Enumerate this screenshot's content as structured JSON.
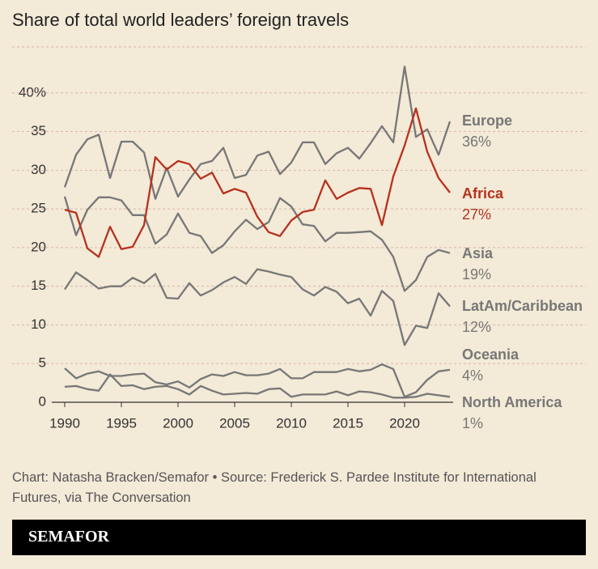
{
  "chart_data": {
    "type": "line",
    "title": "Share of total world leaders’ foreign travels",
    "x": [
      1990,
      1991,
      1992,
      1993,
      1994,
      1995,
      1996,
      1997,
      1998,
      1999,
      2000,
      2001,
      2002,
      2003,
      2004,
      2005,
      2006,
      2007,
      2008,
      2009,
      2010,
      2011,
      2012,
      2013,
      2014,
      2015,
      2016,
      2017,
      2018,
      2019,
      2020,
      2021,
      2022,
      2023,
      2024
    ],
    "xlim": [
      1990,
      2024
    ],
    "xticks": [
      1990,
      1995,
      2000,
      2005,
      2010,
      2015,
      2020
    ],
    "ylim": [
      0,
      45
    ],
    "yticks": [
      0,
      5,
      10,
      15,
      20,
      25,
      30,
      35,
      {
        "value": 40,
        "label": "40%"
      }
    ],
    "grid": true,
    "series": [
      {
        "name": "Europe",
        "color": "#777777",
        "values": [
          27.8,
          32,
          34,
          34.6,
          29,
          33.7,
          33.7,
          32.3,
          26.3,
          30.3,
          26.6,
          28.8,
          30.8,
          31.2,
          32.9,
          29,
          29.4,
          31.9,
          32.4,
          29.5,
          31,
          33.6,
          33.6,
          30.8,
          32.2,
          32.9,
          31.5,
          33.5,
          35.7,
          33.6,
          43.4,
          34.3,
          35.3,
          32,
          36.3
        ],
        "value_labels": [
          null,
          null,
          null,
          null,
          null,
          null,
          null,
          null,
          null,
          null,
          null,
          null,
          null,
          null,
          null,
          null,
          null,
          null,
          null,
          null,
          null,
          null,
          null,
          null,
          null,
          null,
          null,
          null,
          null,
          null,
          null,
          null,
          null,
          null,
          "36%"
        ]
      },
      {
        "name": "Africa",
        "color": "#b5321f",
        "values": [
          24.9,
          24.5,
          19.9,
          18.8,
          22.7,
          19.8,
          20.1,
          22.9,
          31.7,
          30.1,
          31.2,
          30.8,
          28.9,
          29.7,
          27,
          27.6,
          27.1,
          24,
          22,
          21.5,
          23.5,
          24.6,
          24.9,
          28.7,
          26.3,
          27.1,
          27.7,
          27.6,
          22.9,
          29.2,
          33.2,
          38,
          32.4,
          29,
          27.1
        ],
        "value_labels": [
          null,
          null,
          null,
          null,
          null,
          null,
          null,
          null,
          null,
          null,
          null,
          null,
          null,
          null,
          null,
          null,
          null,
          null,
          null,
          null,
          null,
          null,
          null,
          null,
          null,
          null,
          null,
          null,
          null,
          null,
          null,
          null,
          null,
          null,
          "27%"
        ]
      },
      {
        "name": "Asia",
        "color": "#777777",
        "values": [
          26.6,
          21.6,
          24.9,
          26.5,
          26.5,
          26.1,
          24.2,
          24.2,
          20.5,
          21.7,
          24.4,
          21.9,
          21.5,
          19.3,
          20.3,
          22.1,
          23.6,
          22.4,
          23.3,
          26.4,
          25.3,
          23,
          22.8,
          20.8,
          21.9,
          21.9,
          22,
          22.1,
          21,
          18.8,
          14.4,
          15.8,
          18.8,
          19.7,
          19.3
        ],
        "value_labels": [
          null,
          null,
          null,
          null,
          null,
          null,
          null,
          null,
          null,
          null,
          null,
          null,
          null,
          null,
          null,
          null,
          null,
          null,
          null,
          null,
          null,
          null,
          null,
          null,
          null,
          null,
          null,
          null,
          null,
          null,
          null,
          null,
          null,
          null,
          "19%"
        ]
      },
      {
        "name": "LatAm/Caribbean",
        "color": "#777777",
        "values": [
          14.6,
          16.8,
          15.8,
          14.7,
          15,
          15,
          16.1,
          15.4,
          16.6,
          13.5,
          13.4,
          15.4,
          13.8,
          14.5,
          15.5,
          16.2,
          15.3,
          17.2,
          16.9,
          16.5,
          16.2,
          14.6,
          13.8,
          14.9,
          14.3,
          12.8,
          13.4,
          11.2,
          14.4,
          13.1,
          7.4,
          9.9,
          9.6,
          14.1,
          12.4
        ],
        "value_labels": [
          null,
          null,
          null,
          null,
          null,
          null,
          null,
          null,
          null,
          null,
          null,
          null,
          null,
          null,
          null,
          null,
          null,
          null,
          null,
          null,
          null,
          null,
          null,
          null,
          null,
          null,
          null,
          null,
          null,
          null,
          null,
          null,
          null,
          null,
          "12%"
        ]
      },
      {
        "name": "Oceania",
        "color": "#777777",
        "values": [
          4.4,
          3.1,
          3.7,
          4,
          3.4,
          3.4,
          3.6,
          3.7,
          2.6,
          2.3,
          2.7,
          1.9,
          3,
          3.6,
          3.4,
          3.9,
          3.5,
          3.5,
          3.7,
          4.3,
          3.1,
          3.1,
          3.9,
          3.9,
          3.9,
          4.3,
          4,
          4.2,
          4.9,
          4.3,
          0.7,
          1.3,
          2.9,
          4,
          4.2
        ],
        "value_labels": [
          null,
          null,
          null,
          null,
          null,
          null,
          null,
          null,
          null,
          null,
          null,
          null,
          null,
          null,
          null,
          null,
          null,
          null,
          null,
          null,
          null,
          null,
          null,
          null,
          null,
          null,
          null,
          null,
          null,
          null,
          null,
          null,
          null,
          null,
          "4%"
        ]
      },
      {
        "name": "North America",
        "color": "#777777",
        "values": [
          2,
          2.1,
          1.7,
          1.5,
          3.6,
          2.1,
          2.2,
          1.7,
          2,
          2.1,
          1.7,
          1,
          2.1,
          1.5,
          1,
          1.1,
          1.2,
          1.1,
          1.7,
          1.8,
          0.7,
          1,
          1,
          1,
          1.4,
          0.9,
          1.4,
          1.3,
          1,
          0.6,
          0.6,
          0.7,
          1.1,
          0.9,
          0.7
        ],
        "value_labels": [
          null,
          null,
          null,
          null,
          null,
          null,
          null,
          null,
          null,
          null,
          null,
          null,
          null,
          null,
          null,
          null,
          null,
          null,
          null,
          null,
          null,
          null,
          null,
          null,
          null,
          null,
          null,
          null,
          null,
          null,
          null,
          null,
          null,
          null,
          "1%"
        ]
      }
    ],
    "source": "Chart: Natasha Bracken/Semafor • Source: Frederick S. Pardee Institute for International Futures, via The Conversation",
    "brand": "SEMAFOR"
  }
}
